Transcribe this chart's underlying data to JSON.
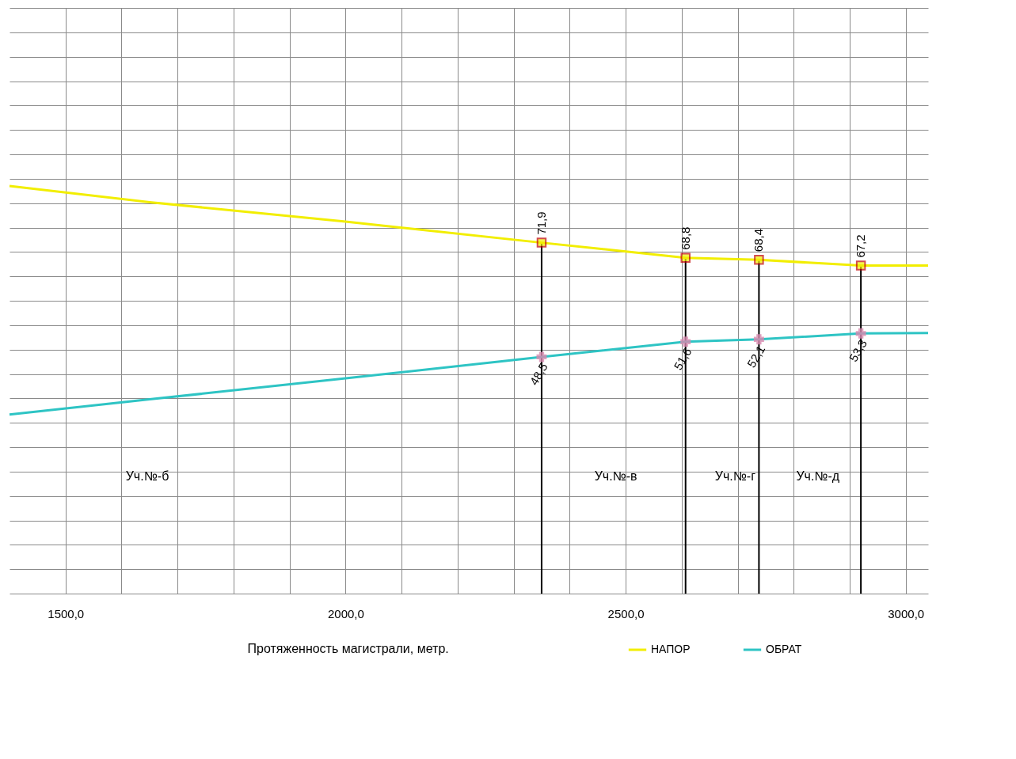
{
  "chart_data": {
    "type": "line",
    "xlabel": "Протяженность магистрали, метр.",
    "xlim": [
      1400,
      3040
    ],
    "xticks": [
      {
        "value": 1500,
        "label": "1500,0"
      },
      {
        "value": 1600,
        "label": null
      },
      {
        "value": 1700,
        "label": null
      },
      {
        "value": 1800,
        "label": null
      },
      {
        "value": 1900,
        "label": null
      },
      {
        "value": 2000,
        "label": "2000,0"
      },
      {
        "value": 2100,
        "label": null
      },
      {
        "value": 2200,
        "label": null
      },
      {
        "value": 2300,
        "label": null
      },
      {
        "value": 2400,
        "label": null
      },
      {
        "value": 2500,
        "label": "2500,0"
      },
      {
        "value": 2600,
        "label": null
      },
      {
        "value": 2700,
        "label": null
      },
      {
        "value": 2800,
        "label": null
      },
      {
        "value": 2900,
        "label": null
      },
      {
        "value": 3000,
        "label": "3000,0"
      }
    ],
    "ylim": [
      0,
      120
    ],
    "tick_labels": "x",
    "grid": true,
    "legend": "bottom",
    "line_style": "solid",
    "series": [
      {
        "name": "НАПОР",
        "color": "#f2ee00",
        "marker": "square",
        "x": [
          1400,
          1650,
          2000,
          2350,
          2607,
          2738,
          2920,
          3040
        ],
        "values": [
          83.5,
          80.2,
          76.2,
          71.9,
          68.8,
          68.4,
          67.2,
          67.2
        ],
        "value_labels": [
          null,
          null,
          null,
          "71,9",
          "68,8",
          "68,4",
          "67,2",
          null
        ]
      },
      {
        "name": "ОБРАТ",
        "color": "#2ec4c4",
        "marker": "cross",
        "x": [
          1400,
          1650,
          2000,
          2350,
          2607,
          2738,
          2920,
          3040
        ],
        "values": [
          36.7,
          39.8,
          44.1,
          48.5,
          51.6,
          52.1,
          53.3,
          53.4
        ],
        "value_labels": [
          null,
          null,
          null,
          "48,5",
          "51,6",
          "52,1",
          "53,3",
          null
        ]
      }
    ],
    "ref_lines": [
      {
        "axis": "x",
        "value": 2350,
        "label": null,
        "color": "#000000"
      },
      {
        "axis": "x",
        "value": 2607,
        "label": null,
        "color": "#000000"
      },
      {
        "axis": "x",
        "value": 2738,
        "label": null,
        "color": "#000000"
      },
      {
        "axis": "x",
        "value": 2920,
        "label": null,
        "color": "#000000"
      }
    ],
    "annotations": [
      "Уч.№-б",
      "Уч.№-в",
      "Уч.№-г",
      "Уч.№-д"
    ]
  }
}
